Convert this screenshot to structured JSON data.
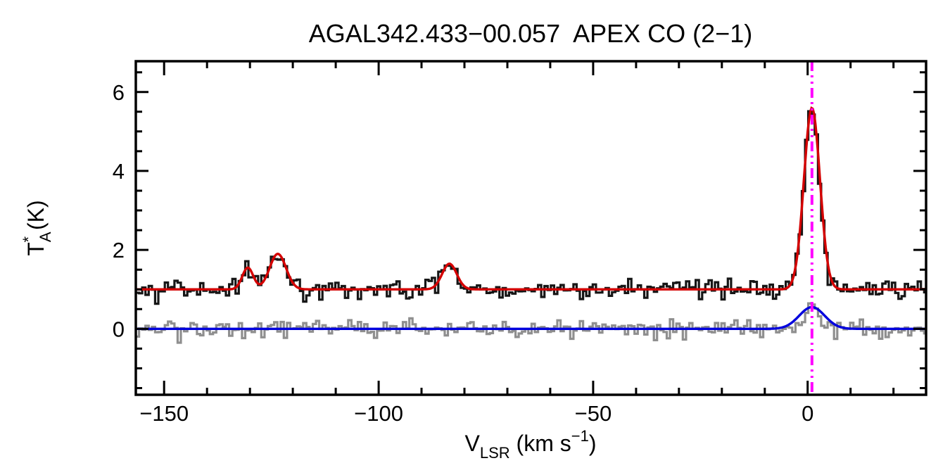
{
  "title": "AGAL342.433−00.057  APEX CO (2−1)",
  "chart_data": {
    "type": "line",
    "title": "AGAL342.433−00.057  APEX CO (2−1)",
    "xlabel": "V_LSR (km s⁻¹)",
    "ylabel": "T_A* (K)",
    "xlabel_parts": [
      {
        "t": "V"
      },
      {
        "t": "LSR",
        "script": "sub"
      },
      {
        "t": " (km s"
      },
      {
        "t": "−1",
        "script": "sup"
      },
      {
        "t": ")"
      }
    ],
    "ylabel_parts": [
      {
        "t": "T"
      },
      {
        "t": "A",
        "script": "sub"
      },
      {
        "t": "*",
        "script": "sup-over"
      },
      {
        "t": " (K)"
      }
    ],
    "xlim": [
      -156.6,
      27.6
    ],
    "ylim": [
      -1.67,
      6.78
    ],
    "grid": false,
    "legend": null,
    "xticks": {
      "values": [
        -150,
        -100,
        -50,
        0
      ],
      "labels": [
        "−150",
        "−100",
        "−50",
        "0"
      ],
      "minor_interval": 10
    },
    "yticks": {
      "values": [
        0,
        2,
        4,
        6
      ],
      "labels": [
        "0",
        "2",
        "4",
        "6"
      ],
      "minor_interval": 0.5
    },
    "vline": {
      "x": 1.0,
      "color": "#ff00ff",
      "style": "dash-dot-dot"
    },
    "bin_width_kms": 0.75,
    "series": [
      {
        "name": "observed-spectrum",
        "role": "histogram",
        "color": "#161616",
        "baseline": 1.0,
        "noise_rms": 0.125,
        "noise_seed": 20147,
        "gaussians": [
          {
            "center": -130.5,
            "amplitude": 0.55,
            "fwhm": 3.0
          },
          {
            "center": -123.5,
            "amplitude": 0.9,
            "fwhm": 4.5
          },
          {
            "center": -83.5,
            "amplitude": 0.65,
            "fwhm": 4.0
          },
          {
            "center": 1.0,
            "amplitude": 4.6,
            "fwhm": 4.4
          }
        ]
      },
      {
        "name": "gaussian-fit",
        "role": "curve",
        "color": "#d40000",
        "baseline": 1.0,
        "gaussians": [
          {
            "center": -130.5,
            "amplitude": 0.55,
            "fwhm": 3.0
          },
          {
            "center": -123.5,
            "amplitude": 0.9,
            "fwhm": 4.5
          },
          {
            "center": -83.5,
            "amplitude": 0.65,
            "fwhm": 4.0
          },
          {
            "center": 1.0,
            "amplitude": 4.6,
            "fwhm": 4.4
          }
        ]
      },
      {
        "name": "residual-spectrum",
        "role": "histogram",
        "color": "#8f8f8f",
        "baseline": 0.0,
        "noise_rms": 0.115,
        "noise_seed": 8211,
        "gaussians": [
          {
            "center": 1.0,
            "amplitude": 0.7,
            "fwhm": 3.2
          }
        ]
      },
      {
        "name": "residual-fit",
        "role": "curve",
        "color": "#0000dd",
        "baseline": 0.0,
        "gaussians": [
          {
            "center": 1.0,
            "amplitude": 0.55,
            "fwhm": 7.0
          }
        ]
      }
    ]
  }
}
